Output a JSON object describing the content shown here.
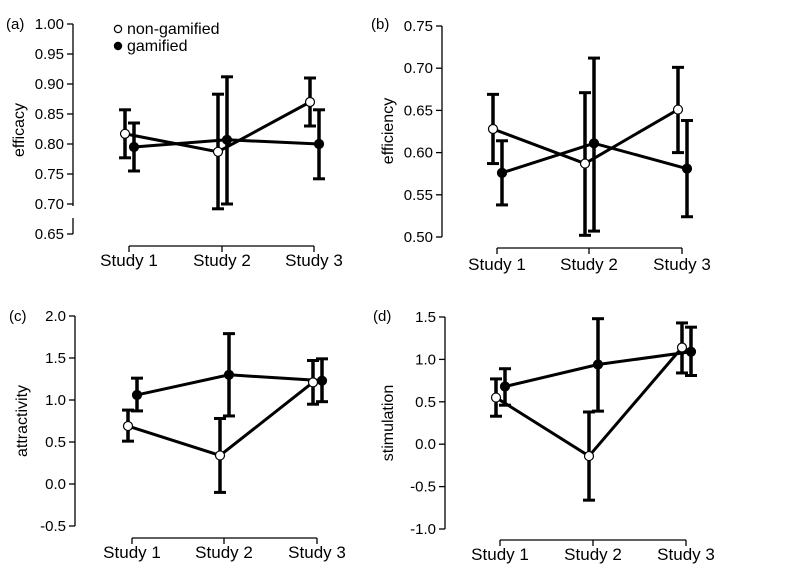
{
  "legend": {
    "entries": [
      {
        "label": "non-gamified",
        "marker": "open-circle"
      },
      {
        "label": "gamified",
        "marker": "filled-circle"
      }
    ],
    "placement": "top-left of panel (a)"
  },
  "chart_data": [
    {
      "type": "line",
      "panel": "(a)",
      "ylabel": "efficacy",
      "xlabel": "",
      "categories": [
        "Study 1",
        "Study 2",
        "Study 3"
      ],
      "ylim": [
        0.65,
        1.0
      ],
      "yticks": [
        "1.00",
        "0.95",
        "0.90",
        "0.85",
        "0.80",
        "0.75",
        "0.70",
        "0.65"
      ],
      "axis_break": true,
      "grid": false,
      "series": [
        {
          "name": "non-gamified",
          "marker": "open",
          "values": [
            0.817,
            0.787,
            0.87
          ],
          "err_high": [
            0.857,
            0.883,
            0.91
          ],
          "err_low": [
            0.777,
            0.692,
            0.83
          ]
        },
        {
          "name": "gamified",
          "marker": "filled",
          "values": [
            0.795,
            0.807,
            0.8
          ],
          "err_high": [
            0.835,
            0.912,
            0.857
          ],
          "err_low": [
            0.755,
            0.7,
            0.742
          ]
        }
      ]
    },
    {
      "type": "line",
      "panel": "(b)",
      "ylabel": "efficiency",
      "xlabel": "",
      "categories": [
        "Study 1",
        "Study 2",
        "Study 3"
      ],
      "ylim": [
        0.5,
        0.75
      ],
      "yticks": [
        "0.75",
        "0.70",
        "0.65",
        "0.60",
        "0.55",
        "0.50"
      ],
      "axis_break": false,
      "grid": false,
      "series": [
        {
          "name": "non-gamified",
          "marker": "open",
          "values": [
            0.628,
            0.587,
            0.651
          ],
          "err_high": [
            0.669,
            0.671,
            0.701
          ],
          "err_low": [
            0.587,
            0.502,
            0.6
          ]
        },
        {
          "name": "gamified",
          "marker": "filled",
          "values": [
            0.576,
            0.611,
            0.581
          ],
          "err_high": [
            0.614,
            0.712,
            0.638
          ],
          "err_low": [
            0.538,
            0.507,
            0.524
          ]
        }
      ]
    },
    {
      "type": "line",
      "panel": "(c)",
      "ylabel": "attractivity",
      "xlabel": "",
      "categories": [
        "Study 1",
        "Study 2",
        "Study 3"
      ],
      "ylim": [
        -0.5,
        2.0
      ],
      "yticks": [
        "2.0",
        "1.5",
        "1.0",
        "0.5",
        "0.0",
        "-0.5"
      ],
      "axis_break": false,
      "grid": false,
      "series": [
        {
          "name": "non-gamified",
          "marker": "open",
          "values": [
            0.69,
            0.34,
            1.21
          ],
          "err_high": [
            0.88,
            0.78,
            1.47
          ],
          "err_low": [
            0.51,
            -0.1,
            0.95
          ]
        },
        {
          "name": "gamified",
          "marker": "filled",
          "values": [
            1.06,
            1.3,
            1.23
          ],
          "err_high": [
            1.26,
            1.79,
            1.49
          ],
          "err_low": [
            0.87,
            0.81,
            0.98
          ]
        }
      ]
    },
    {
      "type": "line",
      "panel": "(d)",
      "ylabel": "stimulation",
      "xlabel": "",
      "categories": [
        "Study 1",
        "Study 2",
        "Study 3"
      ],
      "ylim": [
        -1.0,
        1.5
      ],
      "yticks": [
        "1.5",
        "1.0",
        "0.5",
        "0.0",
        "-0.5",
        "-1.0"
      ],
      "axis_break": false,
      "grid": false,
      "series": [
        {
          "name": "non-gamified",
          "marker": "open",
          "values": [
            0.55,
            -0.14,
            1.14
          ],
          "err_high": [
            0.77,
            0.38,
            1.43
          ],
          "err_low": [
            0.33,
            -0.66,
            0.84
          ]
        },
        {
          "name": "gamified",
          "marker": "filled",
          "values": [
            0.68,
            0.94,
            1.09
          ],
          "err_high": [
            0.89,
            1.48,
            1.38
          ],
          "err_low": [
            0.46,
            0.39,
            0.81
          ]
        }
      ]
    }
  ]
}
